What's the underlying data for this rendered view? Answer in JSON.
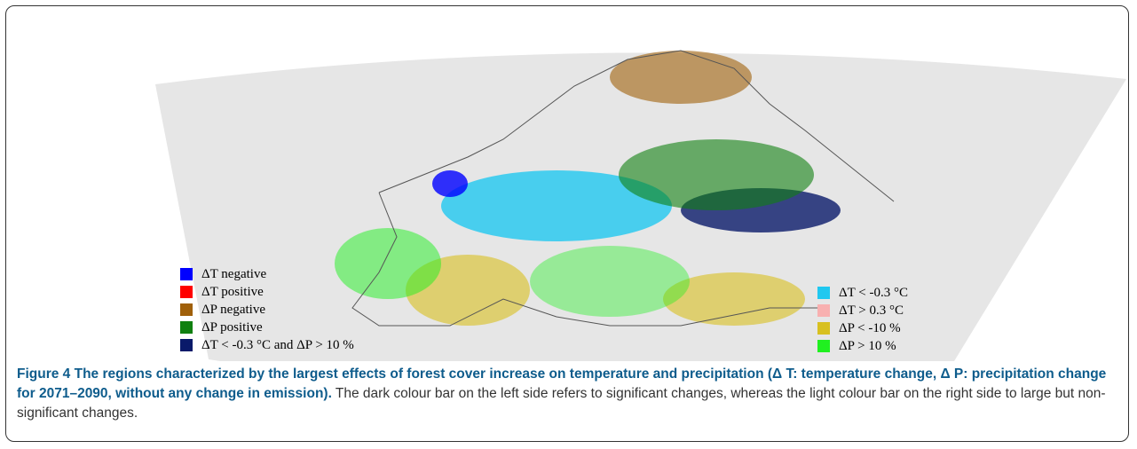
{
  "figure": {
    "legend_left": [
      {
        "label": "ΔT negative",
        "color": "#0000ff"
      },
      {
        "label": "ΔT positive",
        "color": "#ff0000"
      },
      {
        "label": "ΔP negative",
        "color": "#a0600a"
      },
      {
        "label": "ΔP positive",
        "color": "#108010"
      },
      {
        "label": "ΔT < -0.3 °C and ΔP > 10 %",
        "color": "#0a1a6a"
      }
    ],
    "legend_right": [
      {
        "label": "ΔT < -0.3 °C",
        "color": "#20c8f0"
      },
      {
        "label": "ΔT > 0.3 °C",
        "color": "#f8b0b0"
      },
      {
        "label": "ΔP < -10 %",
        "color": "#d8c020"
      },
      {
        "label": "ΔP > 10 %",
        "color": "#20f020"
      }
    ],
    "caption": {
      "title": "Figure 4 The regions characterized by the largest effects of forest cover increase on temperature and precipitation (Δ T: temperature change, Δ P: precipitation change for 2071–2090, without any change in emission).",
      "text": "The dark colour bar on the left side refers to significant changes, whereas the light colour bar on the right side to large but non-significant changes."
    }
  }
}
